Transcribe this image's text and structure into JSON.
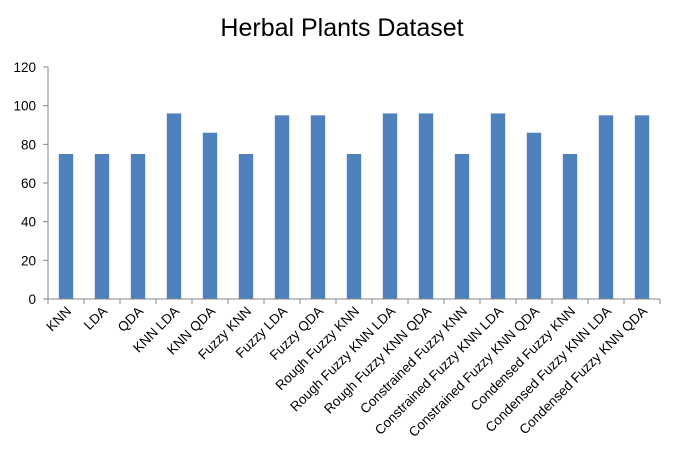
{
  "chart_data": {
    "type": "bar",
    "title": "Herbal Plants Dataset",
    "xlabel": "",
    "ylabel": "",
    "ylim": [
      0,
      120
    ],
    "yticks": [
      0,
      20,
      40,
      60,
      80,
      100,
      120
    ],
    "grid": false,
    "legend": "none",
    "bar_color": "#4F81BD",
    "categories": [
      "KNN",
      "LDA",
      "QDA",
      "KNN LDA",
      "KNN QDA",
      "Fuzzy KNN",
      "Fuzzy LDA",
      "Fuzzy QDA",
      "Rough Fuzzy KNN",
      "Rough Fuzzy KNN LDA",
      "Rough Fuzzy KNN QDA",
      "Constrained Fuzzy KNN",
      "Constrained Fuzzy KNN LDA",
      "Constrained Fuzzy KNN QDA",
      "Condensed Fuzzy KNN",
      "Condensed Fuzzy KNN LDA",
      "Condensed Fuzzy KNN QDA"
    ],
    "values": [
      75,
      75,
      75,
      96,
      86,
      75,
      95,
      95,
      75,
      96,
      96,
      75,
      96,
      86,
      75,
      95,
      95
    ]
  }
}
